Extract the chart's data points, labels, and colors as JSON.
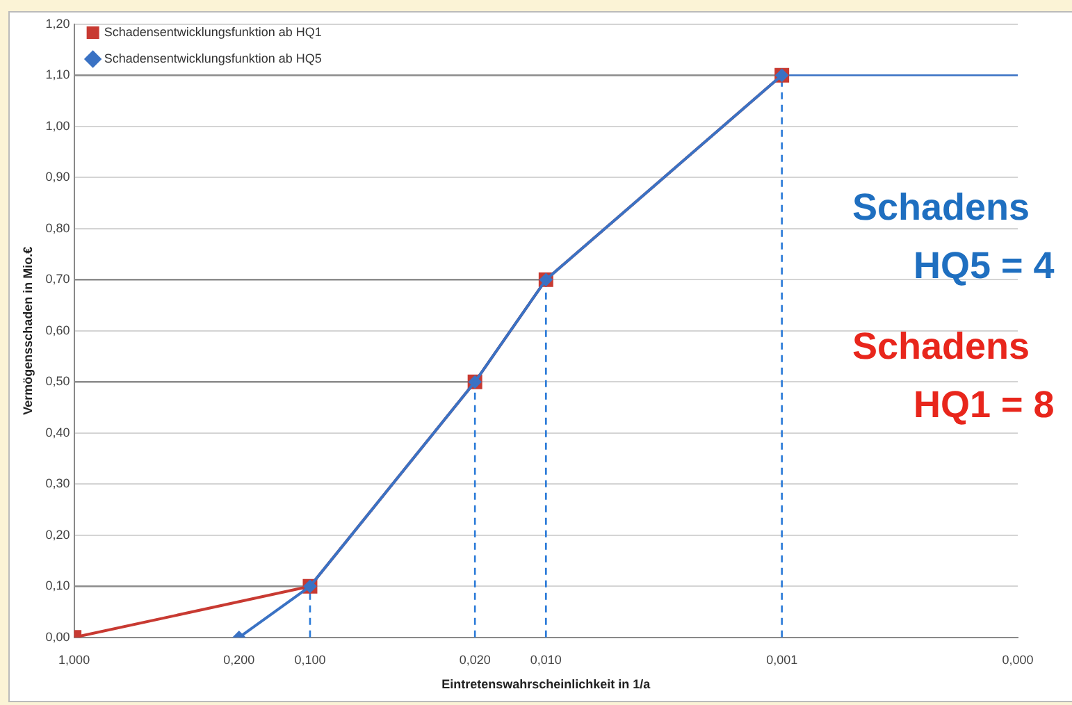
{
  "chart_data": {
    "type": "line",
    "xlabel": "Eintretenswahrscheinlichkeit in 1/a",
    "ylabel": "Vermögensschaden in Mio.€",
    "log": "x",
    "xlim": [
      1,
      0.0001
    ],
    "xticks": [
      {
        "value": 1,
        "label": "1,000"
      },
      {
        "value": 0.2,
        "label": "0,200"
      },
      {
        "value": 0.1,
        "label": "0,100"
      },
      {
        "value": 0.02,
        "label": "0,020"
      },
      {
        "value": 0.01,
        "label": "0,010"
      },
      {
        "value": 0.001,
        "label": "0,001"
      },
      {
        "value": 0.0001,
        "label": "0,000"
      }
    ],
    "ylim": [
      0,
      1.2
    ],
    "yticks": [
      {
        "value": 0,
        "label": "0,00"
      },
      {
        "value": 0.1,
        "label": "0,10"
      },
      {
        "value": 0.2,
        "label": "0,20"
      },
      {
        "value": 0.3,
        "label": "0,30"
      },
      {
        "value": 0.4,
        "label": "0,40"
      },
      {
        "value": 0.5,
        "label": "0,50"
      },
      {
        "value": 0.6,
        "label": "0,60"
      },
      {
        "value": 0.7,
        "label": "0,70"
      },
      {
        "value": 0.8,
        "label": "0,80"
      },
      {
        "value": 0.9,
        "label": "0,90"
      },
      {
        "value": 1,
        "label": "1,00"
      },
      {
        "value": 1.1,
        "label": "1,10"
      },
      {
        "value": 1.2,
        "label": "1,20"
      }
    ],
    "grid": "y",
    "legend": "top left",
    "series": [
      {
        "name": "Schadensentwicklungsfunktion ab HQ1",
        "color": "#c83a32",
        "marker": "square",
        "line_style": "solid",
        "x": [
          1,
          0.1,
          0.02,
          0.01,
          0.001
        ],
        "values": [
          0,
          0.1,
          0.5,
          0.7,
          1.1
        ]
      },
      {
        "name": "Schadensentwicklungsfunktion ab HQ5",
        "color": "#3a72c4",
        "marker": "diamond",
        "line_style": "solid",
        "x": [
          0.2,
          0.1,
          0.02,
          0.01,
          0.001
        ],
        "values": [
          0,
          0.1,
          0.5,
          0.7,
          1.1
        ]
      },
      {
        "color": "#3a72c4",
        "marker": "none",
        "line_style": "solid",
        "x": [
          0.001,
          0.0001
        ],
        "values": [
          1.1,
          1.1
        ]
      },
      {
        "color": "#8c8c8c",
        "marker": "none",
        "line_style": "solid",
        "x": [
          1,
          0.1
        ],
        "values": [
          0.1,
          0.1
        ]
      },
      {
        "color": "#8c8c8c",
        "marker": "none",
        "line_style": "solid",
        "x": [
          1,
          0.02
        ],
        "values": [
          0.5,
          0.5
        ]
      },
      {
        "color": "#8c8c8c",
        "marker": "none",
        "line_style": "solid",
        "x": [
          1,
          0.01
        ],
        "values": [
          0.7,
          0.7
        ]
      },
      {
        "color": "#8c8c8c",
        "marker": "none",
        "line_style": "solid",
        "x": [
          1,
          0.001
        ],
        "values": [
          1.1,
          1.1
        ]
      },
      {
        "color": "#2a7ad8",
        "marker": "none",
        "line_style": "dashed",
        "x": [
          0.1,
          0.1
        ],
        "values": [
          0,
          0.1
        ]
      },
      {
        "color": "#2a7ad8",
        "marker": "none",
        "line_style": "dashed",
        "x": [
          0.02,
          0.02
        ],
        "values": [
          0,
          0.5
        ]
      },
      {
        "color": "#2a7ad8",
        "marker": "none",
        "line_style": "dashed",
        "x": [
          0.01,
          0.01
        ],
        "values": [
          0,
          0.7
        ]
      },
      {
        "color": "#2a7ad8",
        "marker": "none",
        "line_style": "dashed",
        "x": [
          0.001,
          0.001
        ],
        "values": [
          0,
          1.1
        ]
      }
    ],
    "annotations": [
      "Schadens",
      "HQ5 = 4",
      "Schadens",
      "HQ1 = 8"
    ]
  }
}
